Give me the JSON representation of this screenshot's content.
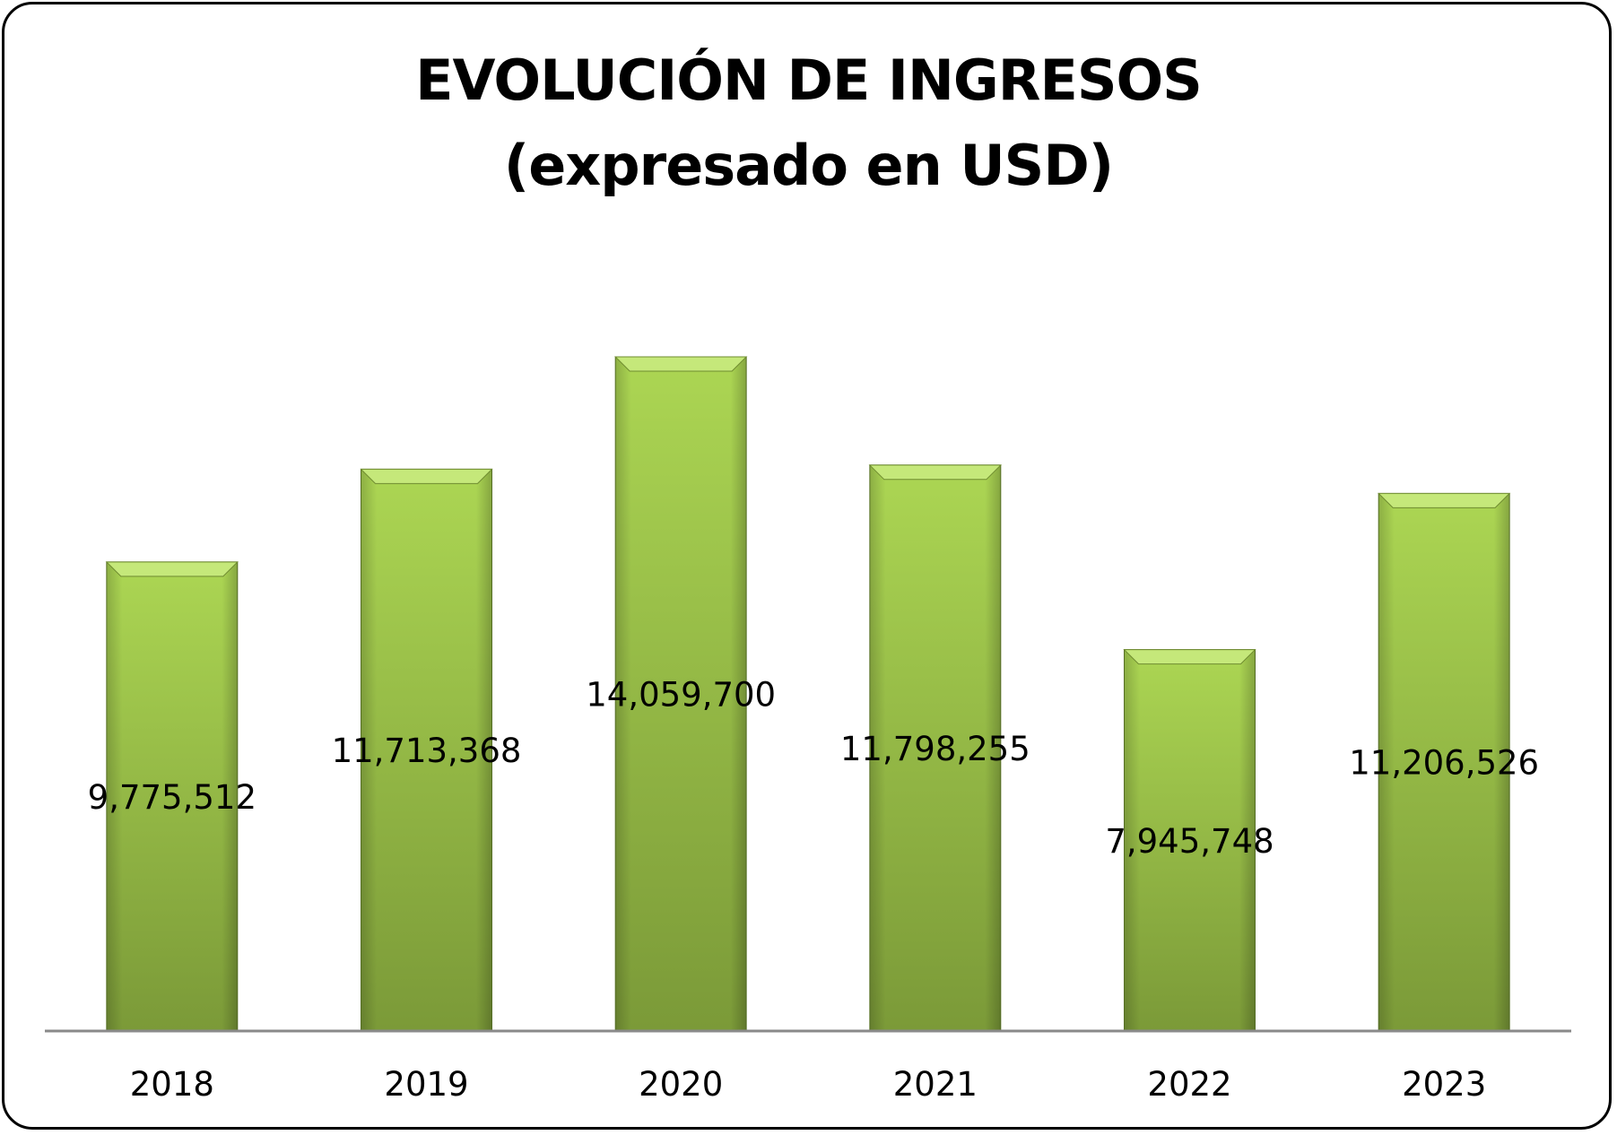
{
  "chart_data": {
    "type": "bar",
    "title": "EVOLUCIÓN DE INGRESOS",
    "subtitle": "(expresado en USD)",
    "categories": [
      "2018",
      "2019",
      "2020",
      "2021",
      "2022",
      "2023"
    ],
    "values": [
      9775512,
      11713368,
      14059700,
      11798255,
      7945748,
      11206526
    ],
    "value_labels": [
      "9,775,512",
      "11,713,368",
      "14,059,700",
      "11,798,255",
      "7,945,748",
      "11,206,526"
    ],
    "xlabel": "",
    "ylabel": "",
    "ylim": [
      0,
      14059700
    ],
    "grid": false,
    "legend": "none"
  },
  "colors": {
    "bar_light": "#acd653",
    "bar_dark": "#7b9a38",
    "bar_top": "#c5e87a",
    "axis": "#8a8a8a",
    "frame": "#000000"
  }
}
